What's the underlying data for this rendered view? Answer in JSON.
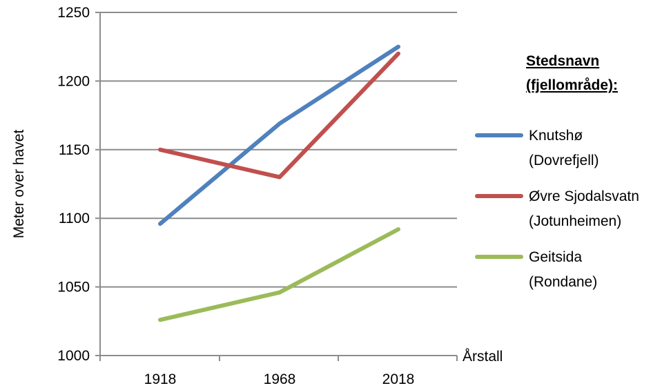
{
  "chart_data": {
    "type": "line",
    "x": [
      1918,
      1968,
      2018
    ],
    "categories": [
      "1918",
      "1968",
      "2018"
    ],
    "xlabel": "Årstall",
    "ylabel": "Meter over havet",
    "ylim": [
      1000,
      1250
    ],
    "yticks": [
      1000,
      1050,
      1100,
      1150,
      1200,
      1250
    ],
    "grid": true,
    "legend_position": "right",
    "legend_title": [
      "Stedsnavn",
      "(fjellområde):"
    ],
    "series": [
      {
        "name": "Knutshø (Dovrefjell)",
        "label_lines": [
          "Knutshø",
          "(Dovrefjell)"
        ],
        "color": "#4F81BD",
        "values": [
          1096,
          1169,
          1225
        ]
      },
      {
        "name": "Øvre Sjodalsvatn (Jotunheimen)",
        "label_lines": [
          "Øvre Sjodalsvatn",
          "(Jotunheimen)"
        ],
        "color": "#C0504D",
        "values": [
          1150,
          1130,
          1220
        ]
      },
      {
        "name": "Geitsida (Rondane)",
        "label_lines": [
          "Geitsida",
          "(Rondane)"
        ],
        "color": "#9BBB59",
        "values": [
          1026,
          1046,
          1092
        ]
      }
    ]
  }
}
